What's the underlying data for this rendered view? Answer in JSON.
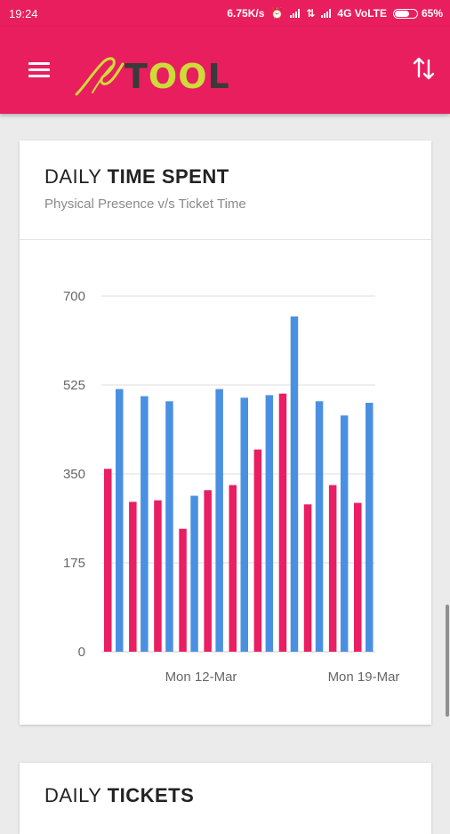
{
  "status_bar": {
    "time": "19:24",
    "speed": "6.75K/s",
    "network": "4G VoLTE",
    "battery": "65%"
  },
  "app_bar": {
    "logo_text_start": "T",
    "logo_text_oo": "OO",
    "logo_text_end": "L",
    "menu_icon": "hamburger-menu-icon",
    "sort_icon": "sort-arrows-icon",
    "background": "#e91e5e"
  },
  "card": {
    "title_light": "DAILY ",
    "title_bold": "TIME SPENT",
    "subtitle": "Physical Presence v/s Ticket Time"
  },
  "card2": {
    "title_light": "DAILY ",
    "title_bold": "TICKETS"
  },
  "chart_data": {
    "type": "bar",
    "x_tick_labels": [
      "Mon 12-Mar",
      "Mon 19-Mar"
    ],
    "y_ticks": [
      0,
      175,
      350,
      525,
      700
    ],
    "ylim": [
      0,
      700
    ],
    "grid": true,
    "series": [
      {
        "color": "#e91e63",
        "values": [
          360,
          295,
          298,
          242,
          318,
          328,
          398,
          508,
          290,
          328,
          293
        ]
      },
      {
        "color": "#4a90e2",
        "values": [
          517,
          503,
          493,
          307,
          517,
          500,
          505,
          660,
          493,
          465,
          490
        ]
      }
    ]
  }
}
